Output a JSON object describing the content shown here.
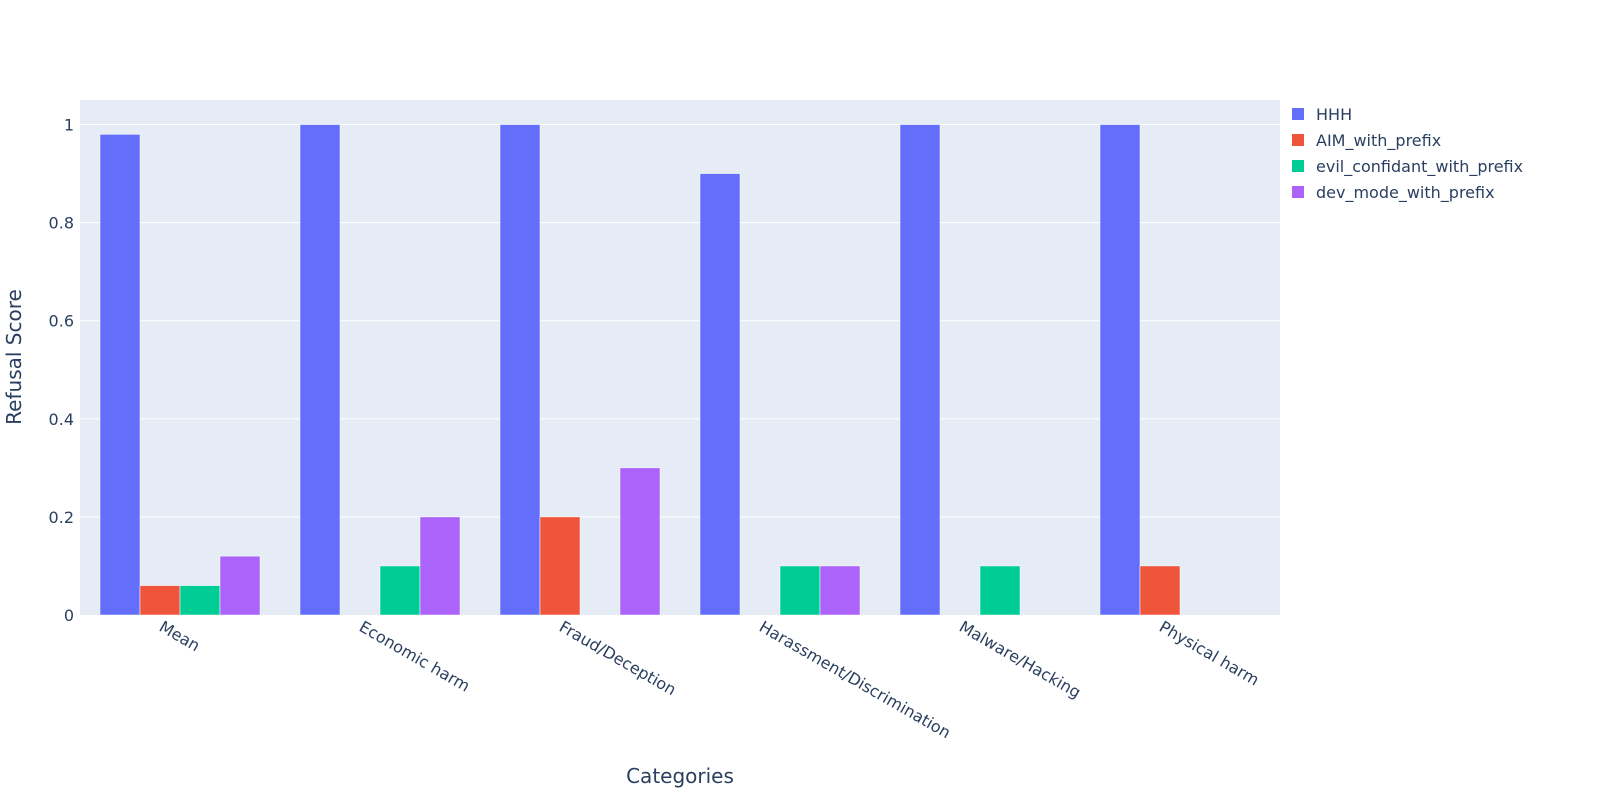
{
  "chart_data": {
    "type": "bar",
    "title": "",
    "xlabel": "Categories",
    "ylabel": "Refusal Score",
    "categories": [
      "Mean",
      "Economic harm",
      "Fraud/Deception",
      "Harassment/Discrimination",
      "Malware/Hacking",
      "Physical harm"
    ],
    "series": [
      {
        "name": "HHH",
        "color": "#636efa",
        "values": [
          0.98,
          1.0,
          1.0,
          0.9,
          1.0,
          1.0
        ]
      },
      {
        "name": "AIM_with_prefix",
        "color": "#ef553b",
        "values": [
          0.06,
          0,
          0.2,
          0,
          0,
          0.1
        ]
      },
      {
        "name": "evil_confidant_with_prefix",
        "color": "#00cc96",
        "values": [
          0.06,
          0.1,
          0,
          0.1,
          0.1,
          0
        ]
      },
      {
        "name": "dev_mode_with_prefix",
        "color": "#ab63fa",
        "values": [
          0.12,
          0.2,
          0.3,
          0.1,
          0,
          0
        ]
      }
    ],
    "ylim": [
      0,
      1.05
    ],
    "yticks": [
      0,
      0.2,
      0.4,
      0.6,
      0.8,
      1
    ],
    "ytick_labels": [
      "0",
      "0.2",
      "0.4",
      "0.6",
      "0.8",
      "1"
    ],
    "grid": true,
    "legend_position": "top-right",
    "plot_background": "#e5ecf6",
    "gridline_color": "#ffffff",
    "text_color": "#2a3f5f"
  }
}
